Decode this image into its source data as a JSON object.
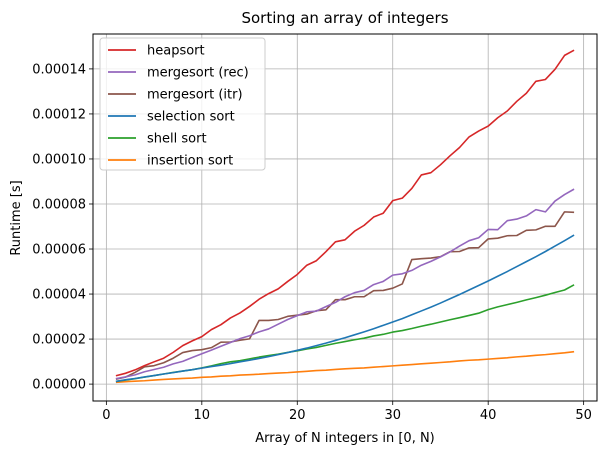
{
  "chart_data": {
    "type": "line",
    "title": "Sorting an array of integers",
    "xlabel": "Array of N integers in [0, N)",
    "ylabel": "Runtime [s]",
    "xlim": [
      -1.4,
      51.4
    ],
    "ylim": [
      -7.5e-06,
      0.0001555
    ],
    "x_ticks": [
      0,
      10,
      20,
      30,
      40,
      50
    ],
    "y_ticks": [
      0,
      2e-05,
      4e-05,
      6e-05,
      8e-05,
      0.0001,
      0.00012,
      0.00014
    ],
    "x_tick_labels": [
      "0",
      "10",
      "20",
      "30",
      "40",
      "50"
    ],
    "y_tick_labels": [
      "0.00000",
      "0.00002",
      "0.00004",
      "0.00006",
      "0.00008",
      "0.00010",
      "0.00012",
      "0.00014"
    ],
    "grid": true,
    "legend_position": "top-left",
    "x": [
      1,
      2,
      3,
      4,
      5,
      6,
      7,
      8,
      9,
      10,
      11,
      12,
      13,
      14,
      15,
      16,
      17,
      18,
      19,
      20,
      21,
      22,
      23,
      24,
      25,
      26,
      27,
      28,
      29,
      30,
      31,
      32,
      33,
      34,
      35,
      36,
      37,
      38,
      39,
      40,
      41,
      42,
      43,
      44,
      45,
      46,
      47,
      48,
      49
    ],
    "series": [
      {
        "name": "heapsort",
        "color": "#d62728",
        "values": [
          3.7e-06,
          4.8e-06,
          6.3e-06,
          8.2e-06,
          9.9e-06,
          1.15e-05,
          1.41e-05,
          1.71e-05,
          1.92e-05,
          2.11e-05,
          2.42e-05,
          2.64e-05,
          2.94e-05,
          3.16e-05,
          3.45e-05,
          3.77e-05,
          4.02e-05,
          4.23e-05,
          4.56e-05,
          4.87e-05,
          5.28e-05,
          5.48e-05,
          5.88e-05,
          6.32e-05,
          6.41e-05,
          6.79e-05,
          7.05e-05,
          7.42e-05,
          7.59e-05,
          8.15e-05,
          8.26e-05,
          8.69e-05,
          9.29e-05,
          9.39e-05,
          9.74e-05,
          0.0001014,
          0.0001051,
          0.0001098,
          0.0001124,
          0.0001146,
          0.0001183,
          0.0001213,
          0.0001256,
          0.0001292,
          0.0001345,
          0.0001353,
          0.0001398,
          0.000146,
          0.0001483
        ]
      },
      {
        "name": "mergesort (rec)",
        "color": "#9467bd",
        "values": [
          2.4e-06,
          3.2e-06,
          4.1e-06,
          5.5e-06,
          6.5e-06,
          7.5e-06,
          9e-06,
          1.01e-05,
          1.18e-05,
          1.35e-05,
          1.51e-05,
          1.68e-05,
          1.85e-05,
          2.02e-05,
          2.15e-05,
          2.32e-05,
          2.45e-05,
          2.66e-05,
          2.87e-05,
          3.04e-05,
          3.21e-05,
          3.24e-05,
          3.44e-05,
          3.63e-05,
          3.88e-05,
          4.06e-05,
          4.16e-05,
          4.42e-05,
          4.56e-05,
          4.84e-05,
          4.9e-05,
          5.05e-05,
          5.28e-05,
          5.45e-05,
          5.65e-05,
          5.87e-05,
          6.13e-05,
          6.37e-05,
          6.5e-05,
          6.87e-05,
          6.86e-05,
          7.26e-05,
          7.33e-05,
          7.47e-05,
          7.75e-05,
          7.65e-05,
          8.13e-05,
          8.42e-05,
          8.66e-05
        ]
      },
      {
        "name": "mergesort (itr)",
        "color": "#8c564b",
        "values": [
          2.2e-06,
          3.1e-06,
          5.2e-06,
          7.7e-06,
          8.2e-06,
          9.5e-06,
          1.15e-05,
          1.4e-05,
          1.49e-05,
          1.53e-05,
          1.62e-05,
          1.86e-05,
          1.87e-05,
          1.95e-05,
          2.01e-05,
          2.83e-05,
          2.83e-05,
          2.87e-05,
          3.01e-05,
          3.06e-05,
          3.11e-05,
          3.26e-05,
          3.3e-05,
          3.75e-05,
          3.75e-05,
          3.88e-05,
          3.88e-05,
          4.15e-05,
          4.16e-05,
          4.26e-05,
          4.45e-05,
          5.53e-05,
          5.57e-05,
          5.6e-05,
          5.66e-05,
          5.88e-05,
          5.89e-05,
          6.05e-05,
          6.06e-05,
          6.45e-05,
          6.48e-05,
          6.59e-05,
          6.6e-05,
          6.83e-05,
          6.85e-05,
          7.01e-05,
          7.01e-05,
          7.65e-05,
          7.63e-05
        ]
      },
      {
        "name": "selection sort",
        "color": "#1f77b4",
        "values": [
          1.2e-06,
          1.9e-06,
          2.5e-06,
          3.2e-06,
          3.8e-06,
          4.5e-06,
          5.1e-06,
          5.8e-06,
          6.4e-06,
          7.1e-06,
          7.8e-06,
          8.4e-06,
          9.1e-06,
          9.9e-06,
          1.06e-05,
          1.14e-05,
          1.22e-05,
          1.31e-05,
          1.4e-05,
          1.5e-05,
          1.6e-05,
          1.71e-05,
          1.82e-05,
          1.94e-05,
          2.06e-05,
          2.19e-05,
          2.32e-05,
          2.46e-05,
          2.61e-05,
          2.76e-05,
          2.91e-05,
          3.08e-05,
          3.25e-05,
          3.42e-05,
          3.6e-05,
          3.79e-05,
          3.98e-05,
          4.18e-05,
          4.38e-05,
          4.58e-05,
          4.79e-05,
          5e-05,
          5.22e-05,
          5.44e-05,
          5.66e-05,
          5.89e-05,
          6.13e-05,
          6.37e-05,
          6.62e-05
        ]
      },
      {
        "name": "shell sort",
        "color": "#2ca02c",
        "values": [
          1.2e-06,
          1.8e-06,
          2.4e-06,
          3.1e-06,
          3.8e-06,
          4.5e-06,
          5.2e-06,
          5.8e-06,
          6.4e-06,
          7.2e-06,
          8.1e-06,
          9.1e-06,
          9.9e-06,
          1.04e-05,
          1.12e-05,
          1.2e-05,
          1.27e-05,
          1.33e-05,
          1.41e-05,
          1.48e-05,
          1.56e-05,
          1.63e-05,
          1.72e-05,
          1.81e-05,
          1.89e-05,
          1.97e-05,
          2.04e-05,
          2.14e-05,
          2.21e-05,
          2.31e-05,
          2.38e-05,
          2.47e-05,
          2.57e-05,
          2.66e-05,
          2.76e-05,
          2.86e-05,
          2.95e-05,
          3.05e-05,
          3.15e-05,
          3.31e-05,
          3.43e-05,
          3.53e-05,
          3.63e-05,
          3.74e-05,
          3.84e-05,
          3.95e-05,
          4.07e-05,
          4.18e-05,
          4.41e-05
        ]
      },
      {
        "name": "insertion sort",
        "color": "#ff7f0e",
        "values": [
          8e-07,
          1.1e-06,
          1.3e-06,
          1.5e-06,
          1.8e-06,
          2.1e-06,
          2.3e-06,
          2.5e-06,
          2.7e-06,
          3e-06,
          3.2e-06,
          3.5e-06,
          3.7e-06,
          4e-06,
          4.2e-06,
          4.4e-06,
          4.7e-06,
          4.9e-06,
          5.1e-06,
          5.4e-06,
          5.7e-06,
          6e-06,
          6.2e-06,
          6.5e-06,
          6.8e-06,
          7e-06,
          7.2e-06,
          7.5e-06,
          7.8e-06,
          8.1e-06,
          8.4e-06,
          8.7e-06,
          9e-06,
          9.3e-06,
          9.6e-06,
          9.9e-06,
          1.03e-05,
          1.06e-05,
          1.08e-05,
          1.11e-05,
          1.14e-05,
          1.17e-05,
          1.21e-05,
          1.24e-05,
          1.28e-05,
          1.31e-05,
          1.35e-05,
          1.39e-05,
          1.44e-05
        ]
      }
    ]
  }
}
